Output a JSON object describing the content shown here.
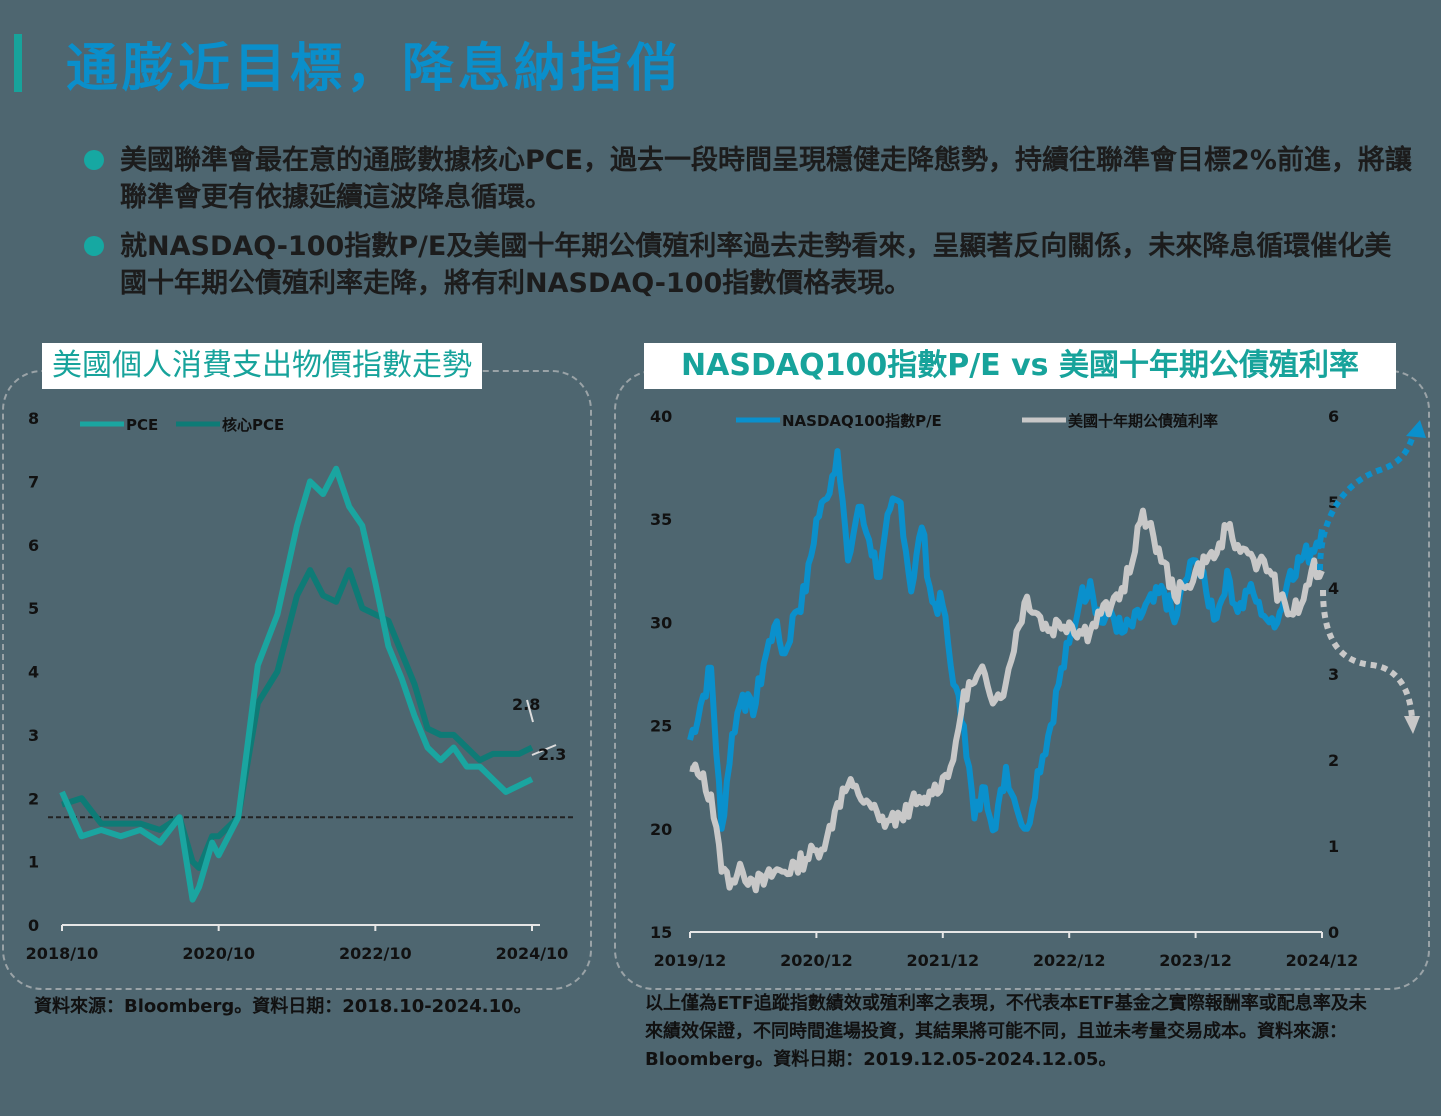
{
  "header": {
    "title": "通膨近目標，降息納指俏"
  },
  "bullets": [
    {
      "text": "美國聯準會最在意的通膨數據核心PCE，過去一段時間呈現穩健走降態勢，持續往聯準會目標2%前進，將讓聯準會更有依據延續這波降息循環。"
    },
    {
      "text": "就NASDAQ-100指數P/E及美國十年期公債殖利率過去走勢看來，呈顯著反向關係，未來降息循環催化美國十年期公債殖利率走降，將有利NASDAQ-100指數價格表現。"
    }
  ],
  "colors": {
    "accent_blue": "#0a8fcb",
    "accent_teal": "#17a39b",
    "pce": "#1aa5a0",
    "core_pce": "#0e7b76",
    "nasdaq_pe": "#0a90cc",
    "treasury": "#c8c8c8",
    "background": "#4e6670"
  },
  "left_chart": {
    "title": "美國個人消費支出物價指數走勢",
    "note": "資料來源：Bloomberg。資料日期：2018.10-2024.10。"
  },
  "right_chart": {
    "title": "NASDAQ100指數P/E vs 美國十年期公債殖利率",
    "note": "以上僅為ETF追蹤指數績效或殖利率之表現，不代表本ETF基金之實際報酬率或配息率及未來績效保證，不同時間進場投資，其結果將可能不同，且並未考量交易成本。資料來源：Bloomberg。資料日期：2019.12.05-2024.12.05。"
  },
  "chart_data": [
    {
      "type": "line",
      "title": "美國個人消費支出物價指數走勢",
      "xlabel": "",
      "ylabel": "",
      "ylim": [
        0,
        8
      ],
      "yticks": [
        "0",
        "1",
        "2",
        "3",
        "4",
        "5",
        "6",
        "7",
        "8"
      ],
      "xticks": [
        "2018/10",
        "2020/10",
        "2022/10",
        "2024/10"
      ],
      "legend": [
        "PCE",
        "核心PCE"
      ],
      "legend_position": "top-left",
      "grid": false,
      "reference_line": {
        "y": 1.7,
        "style": "dashed"
      },
      "annotations": [
        {
          "label": "2.8",
          "series": "核心PCE"
        },
        {
          "label": "2.3",
          "series": "PCE"
        }
      ],
      "x_months_from_2018_10": [
        0,
        3,
        6,
        9,
        12,
        15,
        18,
        20,
        21,
        23,
        24,
        27,
        30,
        33,
        36,
        38,
        40,
        42,
        44,
        46,
        48,
        50,
        52,
        54,
        56,
        58,
        60,
        62,
        64,
        66,
        68,
        70,
        72
      ],
      "series": [
        {
          "name": "PCE",
          "values": [
            2.1,
            1.4,
            1.5,
            1.4,
            1.5,
            1.3,
            1.7,
            0.4,
            0.6,
            1.3,
            1.1,
            1.7,
            4.1,
            4.9,
            6.3,
            7.0,
            6.8,
            7.2,
            6.6,
            6.3,
            5.4,
            4.4,
            3.9,
            3.3,
            2.8,
            2.6,
            2.8,
            2.5,
            2.5,
            2.3,
            2.1,
            2.2,
            2.3
          ]
        },
        {
          "name": "核心PCE",
          "values": [
            1.9,
            2.0,
            1.6,
            1.6,
            1.6,
            1.5,
            1.7,
            1.0,
            0.9,
            1.4,
            1.4,
            1.7,
            3.5,
            4.0,
            5.2,
            5.6,
            5.2,
            5.1,
            5.6,
            5.0,
            4.9,
            4.8,
            4.3,
            3.8,
            3.1,
            3.0,
            3.0,
            2.8,
            2.6,
            2.7,
            2.7,
            2.7,
            2.8
          ]
        }
      ]
    },
    {
      "type": "line",
      "title": "NASDAQ100指數P/E vs 美國十年期公債殖利率",
      "xlabel": "",
      "ylabel_left": "NASDAQ100指數P/E",
      "ylabel_right": "美國十年期公債殖利率",
      "ylim_left": [
        15,
        40
      ],
      "ylim_right": [
        0,
        6
      ],
      "yticks_left": [
        "15",
        "20",
        "25",
        "30",
        "35",
        "40"
      ],
      "yticks_right": [
        "0",
        "1",
        "2",
        "3",
        "4",
        "5",
        "6"
      ],
      "xticks": [
        "2019/12",
        "2020/12",
        "2021/12",
        "2022/12",
        "2023/12",
        "2024/12"
      ],
      "legend": [
        "NASDAQ100指數P/E",
        "美國十年期公債殖利率"
      ],
      "legend_position": "top",
      "grid": false,
      "annotations": [
        {
          "type": "dotted-arrow-up",
          "series": "NASDAQ100指數P/E"
        },
        {
          "type": "dotted-arrow-down",
          "series": "美國十年期公債殖利率"
        }
      ],
      "x_months_from_2019_12": [
        0,
        1,
        2,
        3,
        4,
        5,
        6,
        7,
        8,
        9,
        10,
        11,
        12,
        13,
        14,
        15,
        16,
        17,
        18,
        19,
        20,
        21,
        22,
        23,
        24,
        25,
        26,
        27,
        28,
        29,
        30,
        31,
        32,
        33,
        34,
        35,
        36,
        37,
        38,
        39,
        40,
        41,
        42,
        43,
        44,
        45,
        46,
        47,
        48,
        49,
        50,
        51,
        52,
        53,
        54,
        55,
        56,
        57,
        58,
        59,
        60
      ],
      "series": [
        {
          "name": "NASDAQ100指數P/E",
          "axis": "left",
          "values": [
            24.3,
            26.0,
            27.8,
            20.0,
            24.6,
            26.5,
            25.5,
            28.0,
            29.8,
            28.5,
            30.5,
            31.5,
            35.0,
            36.0,
            38.3,
            33.0,
            35.6,
            34.0,
            32.2,
            35.5,
            35.8,
            31.5,
            34.6,
            31.0,
            30.8,
            27.0,
            25.0,
            20.5,
            22.0,
            20.0,
            23.0,
            21.0,
            20.0,
            22.8,
            24.5,
            27.0,
            29.0,
            31.0,
            32.0,
            30.0,
            30.5,
            29.5,
            29.8,
            30.5,
            31.0,
            31.5,
            30.0,
            32.0,
            33.0,
            31.5,
            30.2,
            32.5,
            30.5,
            31.5,
            31.0,
            30.0,
            30.5,
            32.5,
            33.0,
            33.5,
            34.5
          ]
        },
        {
          "name": "美國十年期公債殖利率",
          "axis": "right",
          "values": [
            1.9,
            1.8,
            1.6,
            0.7,
            0.6,
            0.7,
            0.6,
            0.55,
            0.7,
            0.7,
            0.8,
            0.85,
            0.95,
            1.1,
            1.5,
            1.7,
            1.6,
            1.5,
            1.3,
            1.3,
            1.35,
            1.5,
            1.5,
            1.6,
            1.8,
            2.0,
            2.8,
            2.9,
            3.0,
            2.7,
            2.9,
            3.5,
            3.9,
            3.7,
            3.5,
            3.6,
            3.6,
            3.5,
            3.5,
            3.7,
            3.8,
            4.0,
            4.3,
            4.9,
            4.6,
            4.3,
            3.9,
            4.0,
            4.2,
            4.3,
            4.4,
            4.7,
            4.5,
            4.4,
            4.3,
            4.2,
            3.9,
            3.7,
            3.8,
            4.2,
            4.2
          ]
        }
      ]
    }
  ]
}
